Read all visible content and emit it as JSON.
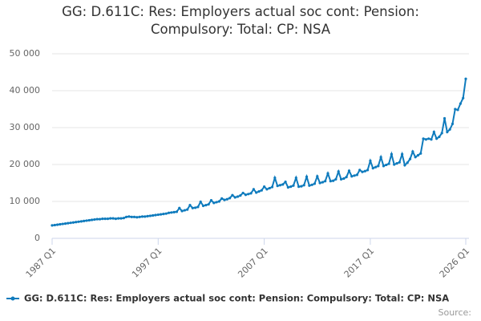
{
  "chart_data": {
    "type": "line",
    "title": "GG: D.611C: Res: Employers actual soc cont: Pension: Compulsory: Total: CP: NSA",
    "source": "Source:",
    "categories": [
      "1987 Q1",
      null,
      null,
      null,
      null,
      null,
      null,
      null,
      null,
      null,
      null,
      null,
      null,
      null,
      null,
      null,
      null,
      null,
      null,
      null,
      null,
      null,
      null,
      null,
      null,
      null,
      null,
      null,
      null,
      null,
      null,
      null,
      null,
      null,
      null,
      null,
      null,
      null,
      null,
      null,
      "1997 Q1",
      null,
      null,
      null,
      null,
      null,
      null,
      null,
      null,
      null,
      null,
      null,
      null,
      null,
      null,
      null,
      null,
      null,
      null,
      null,
      null,
      null,
      null,
      null,
      null,
      null,
      null,
      null,
      null,
      null,
      null,
      null,
      null,
      null,
      null,
      null,
      null,
      null,
      null,
      null,
      "2007 Q1",
      null,
      null,
      null,
      null,
      null,
      null,
      null,
      null,
      null,
      null,
      null,
      null,
      null,
      null,
      null,
      null,
      null,
      null,
      null,
      null,
      null,
      null,
      null,
      null,
      null,
      null,
      null,
      null,
      null,
      null,
      null,
      null,
      null,
      null,
      null,
      null,
      null,
      null,
      null,
      "2017 Q1",
      null,
      null,
      null,
      null,
      null,
      null,
      null,
      null,
      null,
      null,
      null,
      null,
      null,
      null,
      null,
      null,
      null,
      null,
      null,
      null,
      null,
      null,
      null,
      null,
      null,
      null,
      null,
      null,
      null,
      null,
      null,
      null,
      null,
      null,
      null,
      "2026 Q1"
    ],
    "series": [
      {
        "name": "GG: D.611C: Res: Employers actual soc cont: Pension: Compulsory: Total: CP: NSA",
        "color": "#0f7bbd",
        "values": [
          3500,
          3600,
          3700,
          3800,
          3900,
          4000,
          4100,
          4200,
          4300,
          4400,
          4500,
          4600,
          4700,
          4800,
          4900,
          5000,
          5100,
          5200,
          5200,
          5300,
          5300,
          5300,
          5400,
          5400,
          5300,
          5400,
          5400,
          5500,
          5800,
          5900,
          5800,
          5800,
          5700,
          5800,
          5900,
          5900,
          6000,
          6100,
          6200,
          6300,
          6400,
          6500,
          6600,
          6700,
          6900,
          7000,
          7100,
          7200,
          8200,
          7400,
          7600,
          7800,
          9000,
          8200,
          8300,
          8500,
          9900,
          8800,
          9000,
          9200,
          10300,
          9600,
          9800,
          10000,
          10800,
          10400,
          10600,
          10900,
          11700,
          11100,
          11300,
          11600,
          12300,
          11800,
          12000,
          12200,
          13300,
          12400,
          12700,
          13000,
          14000,
          13300,
          13600,
          13900,
          16400,
          14200,
          14400,
          14600,
          15300,
          13800,
          14000,
          14300,
          16400,
          14000,
          14100,
          14400,
          16700,
          14300,
          14500,
          14800,
          16800,
          15000,
          15200,
          15500,
          17600,
          15500,
          15600,
          16000,
          18100,
          16000,
          16200,
          16600,
          18300,
          16800,
          17000,
          17200,
          18500,
          18000,
          18200,
          18500,
          21000,
          19000,
          19300,
          19600,
          22000,
          19600,
          19900,
          20200,
          22800,
          20000,
          20300,
          20600,
          22800,
          19800,
          20500,
          21500,
          23500,
          22000,
          22500,
          23000,
          27000,
          26800,
          27000,
          26800,
          28800,
          27000,
          27500,
          28500,
          32500,
          28800,
          29500,
          31000,
          35000,
          34800,
          36500,
          38000,
          43200
        ]
      }
    ],
    "ylim": [
      0,
      50000
    ],
    "yticks": [
      0,
      {
        "value": 10000,
        "label": "10 000"
      },
      {
        "value": 20000,
        "label": "20 000"
      },
      {
        "value": 30000,
        "label": "30 000"
      },
      {
        "value": 40000,
        "label": "40 000"
      },
      {
        "value": 50000,
        "label": "50 000"
      }
    ],
    "grid": true
  }
}
